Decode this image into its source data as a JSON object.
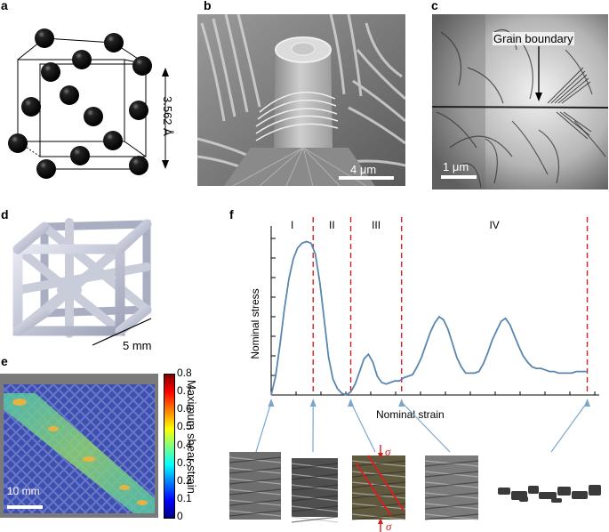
{
  "panels": {
    "a": {
      "label": "a",
      "dimension": "3.562 Å"
    },
    "b": {
      "label": "b",
      "scale_bar": "4 μm"
    },
    "c": {
      "label": "c",
      "annotation": "Grain boundary",
      "scale_bar": "1 μm"
    },
    "d": {
      "label": "d",
      "scale_bar": "5 mm"
    },
    "e": {
      "label": "e",
      "scale_bar": "10 mm",
      "colorbar_title": "Maximum shear strain",
      "colorbar_ticks": [
        "0.8",
        "0.7",
        "0.6",
        "0.5",
        "0.4",
        "0.3",
        "0.2",
        "0.1",
        "0"
      ]
    },
    "f": {
      "label": "f",
      "stress_symbol": "σ"
    }
  },
  "chart_data": {
    "type": "line",
    "title": "",
    "xlabel": "Nominal strain",
    "ylabel": "Nominal stress",
    "regions": [
      "I",
      "II",
      "III",
      "IV"
    ],
    "region_boundaries_x": [
      0.19,
      0.36,
      0.59,
      1.43
    ],
    "x": [
      0.0,
      0.02,
      0.04,
      0.06,
      0.08,
      0.1,
      0.12,
      0.14,
      0.16,
      0.18,
      0.2,
      0.22,
      0.24,
      0.26,
      0.28,
      0.3,
      0.32,
      0.34,
      0.36,
      0.38,
      0.4,
      0.42,
      0.44,
      0.46,
      0.48,
      0.5,
      0.52,
      0.54,
      0.56,
      0.58,
      0.6,
      0.62,
      0.64,
      0.66,
      0.68,
      0.7,
      0.72,
      0.74,
      0.76,
      0.78,
      0.8,
      0.82,
      0.84,
      0.86,
      0.88,
      0.9,
      0.92,
      0.94,
      0.96,
      0.98,
      1.0,
      1.02,
      1.04,
      1.06,
      1.08,
      1.1,
      1.12,
      1.14,
      1.16,
      1.18,
      1.2,
      1.22,
      1.24,
      1.26,
      1.28,
      1.3,
      1.32,
      1.34,
      1.36,
      1.38,
      1.4,
      1.43
    ],
    "y": [
      0.0,
      0.12,
      0.32,
      0.55,
      0.74,
      0.87,
      0.94,
      0.97,
      0.98,
      0.97,
      0.9,
      0.72,
      0.48,
      0.24,
      0.1,
      0.04,
      0.01,
      0.0,
      0.02,
      0.07,
      0.15,
      0.23,
      0.26,
      0.21,
      0.12,
      0.08,
      0.07,
      0.08,
      0.09,
      0.09,
      0.11,
      0.12,
      0.13,
      0.18,
      0.24,
      0.32,
      0.4,
      0.46,
      0.5,
      0.48,
      0.42,
      0.33,
      0.24,
      0.18,
      0.14,
      0.14,
      0.14,
      0.15,
      0.2,
      0.27,
      0.35,
      0.41,
      0.47,
      0.49,
      0.45,
      0.38,
      0.31,
      0.25,
      0.21,
      0.18,
      0.17,
      0.17,
      0.16,
      0.15,
      0.15,
      0.14,
      0.14,
      0.14,
      0.14,
      0.15,
      0.15,
      0.15
    ],
    "grid": false,
    "legend": false
  },
  "colors": {
    "curve": "#5b86b0",
    "dashed": "#d62020",
    "arrow": "#7aa6cc",
    "red": "#d62020"
  }
}
